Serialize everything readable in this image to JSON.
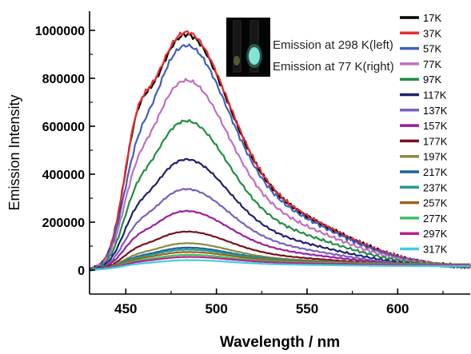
{
  "chart_data": {
    "type": "line",
    "title": "",
    "xlabel": "Wavelength / nm",
    "ylabel": "Emission Intensity",
    "xlim": [
      430,
      640
    ],
    "ylim": [
      -100000,
      1080000
    ],
    "xticks": [
      450,
      500,
      550,
      600
    ],
    "yticks": [
      0,
      200000,
      400000,
      600000,
      800000,
      1000000
    ],
    "grid": false,
    "legend_position": "right",
    "inset": {
      "lines": [
        "Emission at 298 K(left)",
        "Emission at 77 K(right)"
      ]
    },
    "series": [
      {
        "name": "17K",
        "color": "#000000",
        "peak": 970000,
        "shoulder": 820000,
        "baseline": 10000
      },
      {
        "name": "37K",
        "color": "#ee2b2b",
        "peak": 980000,
        "shoulder": 800000,
        "baseline": 10000
      },
      {
        "name": "57K",
        "color": "#3f5fbf",
        "peak": 925000,
        "shoulder": 740000,
        "baseline": 10000
      },
      {
        "name": "77K",
        "color": "#c06fc0",
        "peak": 780000,
        "shoulder": 600000,
        "baseline": 10000
      },
      {
        "name": "97K",
        "color": "#1f8f3f",
        "peak": 610000,
        "shoulder": 460000,
        "baseline": 12000
      },
      {
        "name": "117K",
        "color": "#1f1f6f",
        "peak": 450000,
        "shoulder": 330000,
        "baseline": 12000
      },
      {
        "name": "137K",
        "color": "#7a5fbf",
        "peak": 325000,
        "shoulder": 240000,
        "baseline": 14000
      },
      {
        "name": "157K",
        "color": "#9a1f9a",
        "peak": 232000,
        "shoulder": 170000,
        "baseline": 16000
      },
      {
        "name": "177K",
        "color": "#7a0f1f",
        "peak": 145000,
        "shoulder": 105000,
        "baseline": 18000
      },
      {
        "name": "197K",
        "color": "#8a8a3f",
        "peak": 95000,
        "shoulder": 70000,
        "baseline": 20000
      },
      {
        "name": "217K",
        "color": "#1f5f9f",
        "peak": 75000,
        "shoulder": 55000,
        "baseline": 22000
      },
      {
        "name": "237K",
        "color": "#1f9f8f",
        "peak": 65000,
        "shoulder": 48000,
        "baseline": 24000
      },
      {
        "name": "257K",
        "color": "#a0601f",
        "peak": 55000,
        "shoulder": 40000,
        "baseline": 24000
      },
      {
        "name": "277K",
        "color": "#3fbf5f",
        "peak": 45000,
        "shoulder": 33000,
        "baseline": 22000
      },
      {
        "name": "297K",
        "color": "#bf1f8f",
        "peak": 38000,
        "shoulder": 28000,
        "baseline": 20000
      },
      {
        "name": "317K",
        "color": "#3fcfdf",
        "peak": 28000,
        "shoulder": 20000,
        "baseline": 16000
      }
    ]
  }
}
